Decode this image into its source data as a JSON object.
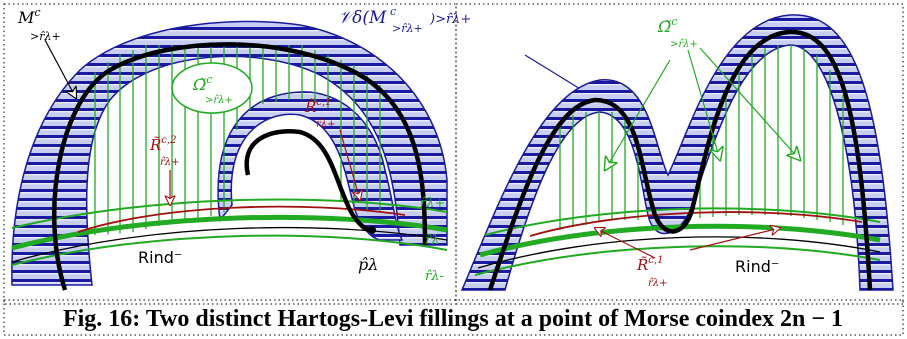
{
  "labels": {
    "m_left": "M",
    "m_left_sup": "c",
    "m_left_sub": ">r̂λ+",
    "v_delta": "𝒱δ(M",
    "v_delta_sup": "c",
    "v_delta_sub": ">r̂λ+",
    "v_delta_tail": ")>r̂λ+",
    "omega_left": "Ω̃",
    "omega_left_sup": "c",
    "omega_left_sub": ">r̂λ+",
    "omega_right": "Ω̃",
    "omega_right_sup": "c",
    "omega_right_sub": ">r̂λ+",
    "r_c1_left": "R̃",
    "r_c1_left_sup": "c,1",
    "r_c1_left_sub": "r̂λ+",
    "r_c2_left": "R̃",
    "r_c2_left_sup": "c,2",
    "r_c2_left_sub": "r̂λ+",
    "r_c1_right": "R̃",
    "r_c1_right_sup": "c,1",
    "r_c1_right_sub": "r̂λ+",
    "rind_left": "Rind⁻",
    "rind_right": "Rind⁻",
    "r_plus": "r̂λ+",
    "r_mid": "r̂λ",
    "r_minus": "r̂λ-",
    "p_lambda": "p̂λ"
  },
  "caption": "Fig. 16: Two distinct Hartogs-Levi fillings at a point of Morse coindex 2n − 1",
  "colors": {
    "band_fill": "#c8cef2",
    "band_stripe": "#1a1aa0",
    "filling_green": "#22aa22",
    "red_annot": "#a01010",
    "blue_annot": "#1a1a9a",
    "curve": "#000000"
  }
}
